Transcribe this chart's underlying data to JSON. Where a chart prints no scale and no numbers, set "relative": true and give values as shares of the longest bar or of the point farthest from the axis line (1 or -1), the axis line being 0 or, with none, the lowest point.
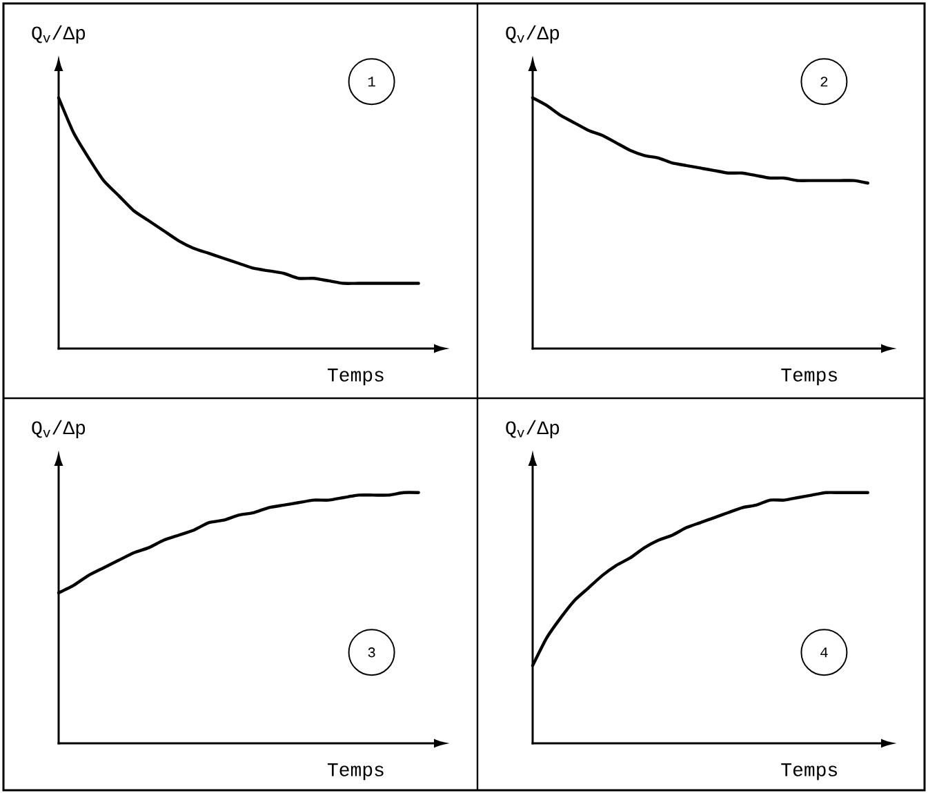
{
  "chart_data": [
    {
      "type": "line",
      "relative": true,
      "ylabel": "Q$_{v}$/Δp",
      "xlabel": "Temps",
      "annotations": [
        "1"
      ],
      "color": "#000000",
      "categories": [
        null,
        null,
        null,
        null,
        null,
        null,
        null,
        null,
        null,
        null,
        null,
        null,
        null,
        null,
        null,
        null,
        null,
        null,
        null,
        null,
        null,
        null,
        null,
        null,
        null
      ],
      "values": [
        1,
        0.86,
        0.76,
        0.67,
        0.61,
        0.55,
        0.51,
        0.47,
        0.43,
        0.4,
        0.38,
        0.36,
        0.34,
        0.32,
        0.31,
        0.3,
        0.28,
        0.28,
        0.27,
        0.26,
        0.26,
        0.26,
        0.26,
        0.26,
        0.26
      ]
    },
    {
      "type": "line",
      "relative": true,
      "ylabel": "Q$_{v}$/Δp",
      "xlabel": "Temps",
      "annotations": [
        "2"
      ],
      "color": "#000000",
      "categories": [
        null,
        null,
        null,
        null,
        null,
        null,
        null,
        null,
        null,
        null,
        null,
        null,
        null,
        null,
        null,
        null,
        null,
        null,
        null,
        null,
        null,
        null,
        null,
        null,
        null
      ],
      "values": [
        1,
        0.97,
        0.93,
        0.9,
        0.87,
        0.85,
        0.82,
        0.79,
        0.77,
        0.76,
        0.74,
        0.73,
        0.72,
        0.71,
        0.7,
        0.7,
        0.69,
        0.68,
        0.68,
        0.67,
        0.67,
        0.67,
        0.67,
        0.67,
        0.66
      ]
    },
    {
      "type": "line",
      "relative": true,
      "ylabel": "Q$_{v}$/Δp",
      "xlabel": "Temps",
      "annotations": [
        "3"
      ],
      "color": "#000000",
      "categories": [
        null,
        null,
        null,
        null,
        null,
        null,
        null,
        null,
        null,
        null,
        null,
        null,
        null,
        null,
        null,
        null,
        null,
        null,
        null,
        null,
        null,
        null,
        null,
        null,
        null
      ],
      "values": [
        0.6,
        0.63,
        0.67,
        0.7,
        0.73,
        0.76,
        0.78,
        0.81,
        0.83,
        0.85,
        0.88,
        0.89,
        0.91,
        0.92,
        0.94,
        0.95,
        0.96,
        0.97,
        0.97,
        0.98,
        0.99,
        0.99,
        0.99,
        1,
        1
      ]
    },
    {
      "type": "line",
      "relative": true,
      "ylabel": "Q$_{v}$/Δp",
      "xlabel": "Temps",
      "annotations": [
        "4"
      ],
      "color": "#000000",
      "categories": [
        null,
        null,
        null,
        null,
        null,
        null,
        null,
        null,
        null,
        null,
        null,
        null,
        null,
        null,
        null,
        null,
        null,
        null,
        null,
        null,
        null,
        null,
        null,
        null,
        null
      ],
      "values": [
        0.31,
        0.42,
        0.5,
        0.57,
        0.62,
        0.67,
        0.71,
        0.74,
        0.78,
        0.81,
        0.83,
        0.86,
        0.88,
        0.9,
        0.92,
        0.94,
        0.95,
        0.97,
        0.97,
        0.98,
        0.99,
        1,
        1,
        1,
        1
      ]
    }
  ]
}
